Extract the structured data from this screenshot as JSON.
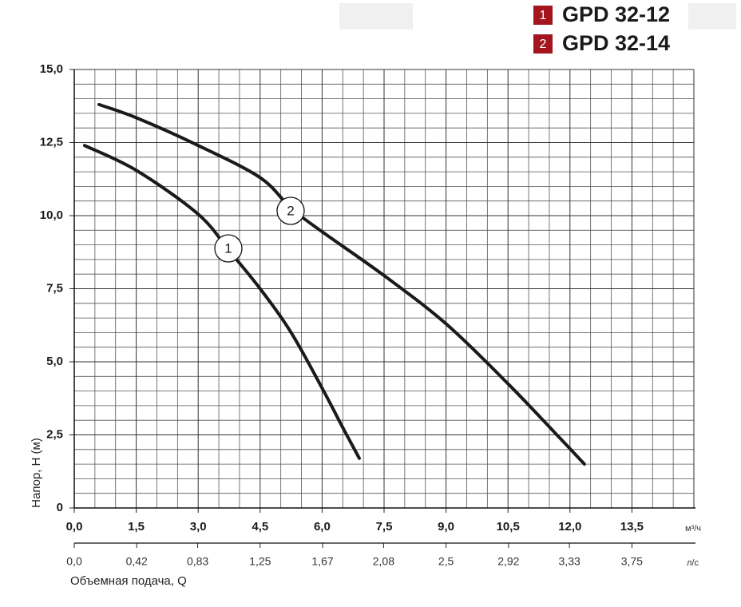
{
  "chart_data": {
    "type": "line",
    "ylabel": "Напор, H (м)",
    "xlabel": "Объемная подача, Q",
    "xunit": "м³/ч",
    "x2unit": "л/с",
    "xlim": [
      0,
      15
    ],
    "xticks": [
      {
        "value": 0,
        "label": "0,0"
      },
      {
        "value": 1.5,
        "label": "1,5"
      },
      {
        "value": 3,
        "label": "3,0"
      },
      {
        "value": 4.5,
        "label": "4,5"
      },
      {
        "value": 6,
        "label": "6,0"
      },
      {
        "value": 7.5,
        "label": "7,5"
      },
      {
        "value": 9,
        "label": "9,0"
      },
      {
        "value": 10.5,
        "label": "10,5"
      },
      {
        "value": 12,
        "label": "12,0"
      },
      {
        "value": 13.5,
        "label": "13,5"
      }
    ],
    "x2lim": [
      0,
      4.1667
    ],
    "x2ticks": [
      {
        "value": 0,
        "label": "0,0"
      },
      {
        "value": 0.42,
        "label": "0,42"
      },
      {
        "value": 0.83,
        "label": "0,83"
      },
      {
        "value": 1.25,
        "label": "1,25"
      },
      {
        "value": 1.67,
        "label": "1,67"
      },
      {
        "value": 2.08,
        "label": "2,08"
      },
      {
        "value": 2.5,
        "label": "2,5"
      },
      {
        "value": 2.92,
        "label": "2,92"
      },
      {
        "value": 3.33,
        "label": "3,33"
      },
      {
        "value": 3.75,
        "label": "3,75"
      }
    ],
    "ylim": [
      0,
      15
    ],
    "yticks": [
      0,
      {
        "value": 2.5,
        "label": "2,5"
      },
      {
        "value": 5,
        "label": "5,0"
      },
      {
        "value": 7.5,
        "label": "7,5"
      },
      {
        "value": 10,
        "label": "10,0"
      },
      {
        "value": 12.5,
        "label": "12,5"
      },
      {
        "value": 15,
        "label": "15,0"
      }
    ],
    "grid": true,
    "series": [
      {
        "name": "GPD 32-12",
        "number": "1",
        "color": "#1a1a1a",
        "x": [
          0.25,
          1.5,
          3.0,
          3.75,
          4.5,
          5.25,
          6.0,
          6.5,
          6.9
        ],
        "values": [
          12.4,
          11.55,
          10.05,
          8.8,
          7.5,
          6.0,
          4.1,
          2.75,
          1.7
        ]
      },
      {
        "name": "GPD 32-14",
        "number": "2",
        "color": "#1a1a1a",
        "x": [
          0.6,
          1.5,
          3.0,
          4.5,
          5.25,
          6.0,
          7.5,
          9.0,
          10.5,
          11.75,
          12.35
        ],
        "values": [
          13.8,
          13.35,
          12.4,
          11.3,
          10.25,
          9.45,
          7.95,
          6.3,
          4.25,
          2.4,
          1.5
        ]
      }
    ],
    "legend_color": "#a3141c"
  }
}
